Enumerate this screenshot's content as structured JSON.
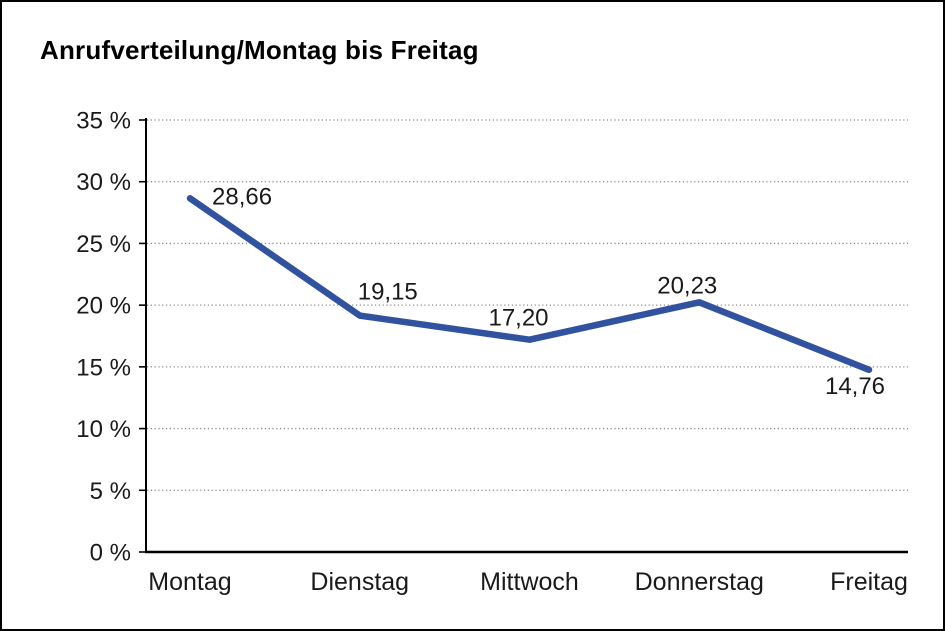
{
  "page": {
    "background_color": "#ffffff",
    "border_color": "#000000"
  },
  "chart_data": {
    "type": "line",
    "title": "Anrufverteilung/Montag bis Freitag",
    "categories": [
      "Montag",
      "Dienstag",
      "Mittwoch",
      "Donnerstag",
      "Freitag"
    ],
    "series": [
      {
        "name": "Anrufverteilung",
        "values": [
          28.66,
          19.15,
          17.2,
          20.23,
          14.76
        ]
      }
    ],
    "point_labels": [
      "28,66",
      "19,15",
      "17,20",
      "20,23",
      "14,76"
    ],
    "xlabel": "",
    "ylabel": "",
    "ylim": [
      0,
      35
    ],
    "y_ticks": [
      {
        "value": 0,
        "label": "0 %"
      },
      {
        "value": 5,
        "label": "5 %"
      },
      {
        "value": 10,
        "label": "10 %"
      },
      {
        "value": 15,
        "label": "15 %"
      },
      {
        "value": 20,
        "label": "20 %"
      },
      {
        "value": 25,
        "label": "25 %"
      },
      {
        "value": 30,
        "label": "30 %"
      },
      {
        "value": 35,
        "label": "35 %"
      }
    ],
    "grid": "horizontal-dotted",
    "legend_position": "none",
    "line_color": "#31529E",
    "axis_color": "#000000",
    "grid_color": "#8A8A8A",
    "text_color": "#1A1A1A"
  }
}
